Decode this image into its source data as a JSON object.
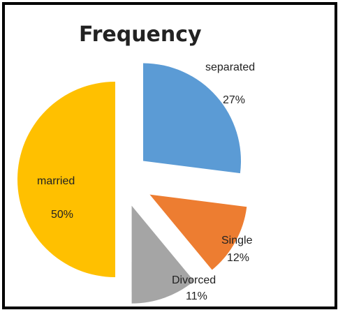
{
  "chart_data": {
    "type": "pie",
    "title": "Frequency",
    "series": [
      {
        "label": "separated",
        "value": 27,
        "value_label": "27%",
        "color": "#5B9BD5"
      },
      {
        "label": "Single",
        "value": 12,
        "value_label": "12%",
        "color": "#ED7D31"
      },
      {
        "label": "Divorced",
        "value": 11,
        "value_label": "11%",
        "color": "#A5A5A5"
      },
      {
        "label": "married",
        "value": 50,
        "value_label": "50%",
        "color": "#FFC000"
      }
    ],
    "exploded": true,
    "start_angle": "12 o'clock, clockwise",
    "legend": "none",
    "data_labels": "category name and percentage"
  }
}
